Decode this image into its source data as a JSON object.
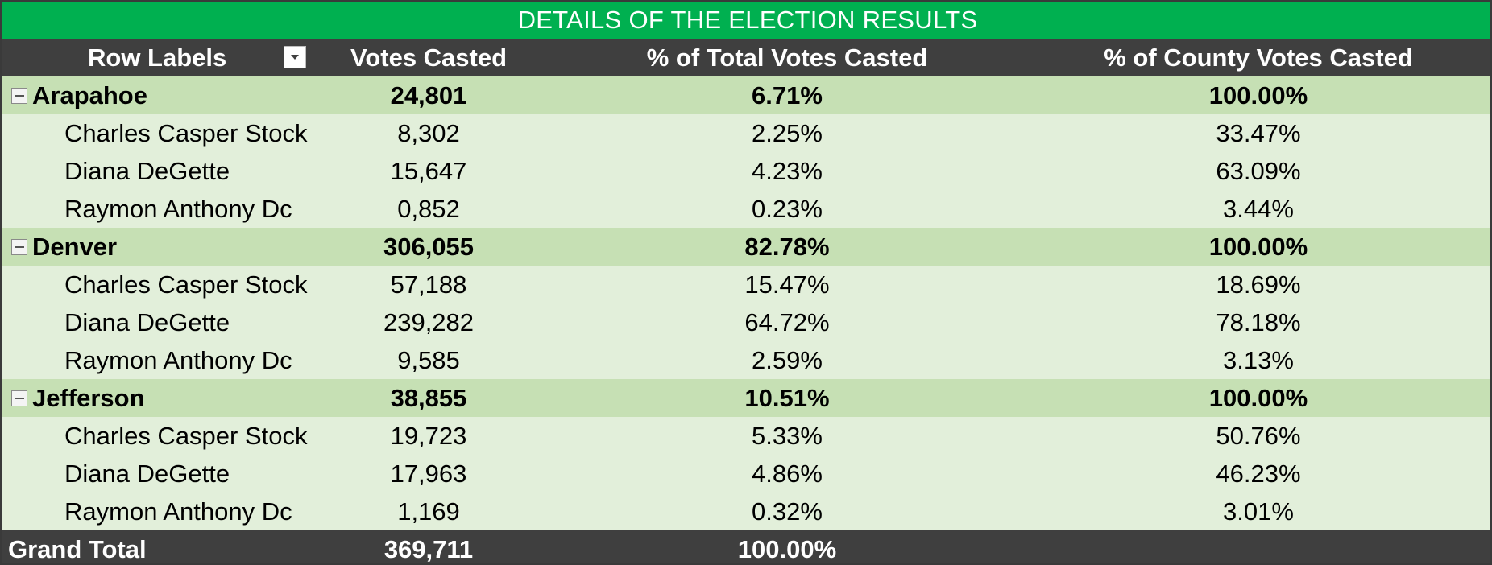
{
  "title": "DETAILS OF THE ELECTION RESULTS",
  "headers": {
    "row_labels": "Row Labels",
    "votes": "Votes Casted",
    "pct_total": "% of Total Votes Casted",
    "pct_county": "% of County Votes Casted"
  },
  "icons": {
    "filter": "filter-dropdown-icon",
    "collapse": "collapse-minus-icon"
  },
  "colors": {
    "title_bg": "#00b050",
    "header_bg": "#3f3f3f",
    "county_bg": "#c6e0b4",
    "candidate_bg": "#e2efda"
  },
  "counties": [
    {
      "name": "Arapahoe",
      "votes": "24,801",
      "pct_total": "6.71%",
      "pct_county": "100.00%",
      "candidates": [
        {
          "name": "Charles Casper Stock",
          "votes": "8,302",
          "pct_total": "2.25%",
          "pct_county": "33.47%"
        },
        {
          "name": "Diana DeGette",
          "votes": "15,647",
          "pct_total": "4.23%",
          "pct_county": "63.09%"
        },
        {
          "name": "Raymon Anthony Dc",
          "votes": "0,852",
          "pct_total": "0.23%",
          "pct_county": "3.44%"
        }
      ]
    },
    {
      "name": "Denver",
      "votes": "306,055",
      "pct_total": "82.78%",
      "pct_county": "100.00%",
      "candidates": [
        {
          "name": "Charles Casper Stock",
          "votes": "57,188",
          "pct_total": "15.47%",
          "pct_county": "18.69%"
        },
        {
          "name": "Diana DeGette",
          "votes": "239,282",
          "pct_total": "64.72%",
          "pct_county": "78.18%"
        },
        {
          "name": "Raymon Anthony Dc",
          "votes": "9,585",
          "pct_total": "2.59%",
          "pct_county": "3.13%"
        }
      ]
    },
    {
      "name": "Jefferson",
      "votes": "38,855",
      "pct_total": "10.51%",
      "pct_county": "100.00%",
      "candidates": [
        {
          "name": "Charles Casper Stock",
          "votes": "19,723",
          "pct_total": "5.33%",
          "pct_county": "50.76%"
        },
        {
          "name": "Diana DeGette",
          "votes": "17,963",
          "pct_total": "4.86%",
          "pct_county": "46.23%"
        },
        {
          "name": "Raymon Anthony Dc",
          "votes": "1,169",
          "pct_total": "0.32%",
          "pct_county": "3.01%"
        }
      ]
    }
  ],
  "grand_total": {
    "label": "Grand Total",
    "votes": "369,711",
    "pct_total": "100.00%",
    "pct_county": ""
  }
}
